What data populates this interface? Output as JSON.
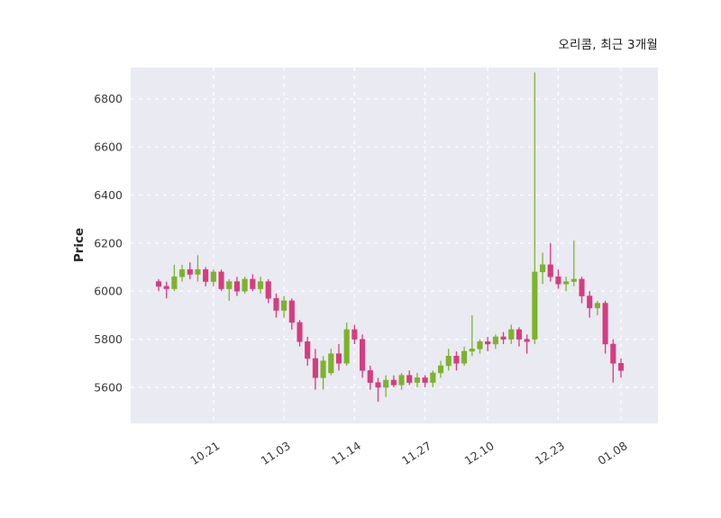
{
  "chart_data": {
    "type": "candlestick",
    "title": "오리콤, 최근 3개월",
    "ylabel": "Price",
    "ylim": [
      5450,
      6930
    ],
    "y_ticks": [
      5600,
      5800,
      6000,
      6200,
      6400,
      6600,
      6800
    ],
    "x_ticks": [
      {
        "index": 7,
        "label": "10.21"
      },
      {
        "index": 16,
        "label": "11.03"
      },
      {
        "index": 25,
        "label": "11.14"
      },
      {
        "index": 34,
        "label": "11.27"
      },
      {
        "index": 42,
        "label": "12.10"
      },
      {
        "index": 51,
        "label": "12.23"
      },
      {
        "index": 59,
        "label": "01.08"
      }
    ],
    "grid": "dashed",
    "legend": "none",
    "candle_format": [
      "open",
      "high",
      "low",
      "close"
    ],
    "candles": [
      [
        6040,
        6050,
        6000,
        6020
      ],
      [
        6020,
        6040,
        5970,
        6010
      ],
      [
        6010,
        6110,
        6000,
        6060
      ],
      [
        6060,
        6110,
        6040,
        6090
      ],
      [
        6090,
        6120,
        6050,
        6070
      ],
      [
        6070,
        6150,
        6040,
        6090
      ],
      [
        6090,
        6100,
        6020,
        6040
      ],
      [
        6040,
        6090,
        6020,
        6080
      ],
      [
        6080,
        6090,
        6000,
        6010
      ],
      [
        6010,
        6050,
        5960,
        6040
      ],
      [
        6040,
        6060,
        5980,
        6000
      ],
      [
        6000,
        6060,
        5990,
        6050
      ],
      [
        6050,
        6070,
        6000,
        6010
      ],
      [
        6010,
        6060,
        5990,
        6040
      ],
      [
        6040,
        6050,
        5950,
        5970
      ],
      [
        5970,
        5990,
        5890,
        5920
      ],
      [
        5920,
        5980,
        5890,
        5960
      ],
      [
        5960,
        5970,
        5840,
        5870
      ],
      [
        5870,
        5880,
        5770,
        5790
      ],
      [
        5790,
        5810,
        5690,
        5720
      ],
      [
        5720,
        5760,
        5590,
        5640
      ],
      [
        5640,
        5730,
        5590,
        5710
      ],
      [
        5660,
        5760,
        5650,
        5740
      ],
      [
        5740,
        5780,
        5670,
        5700
      ],
      [
        5700,
        5870,
        5690,
        5840
      ],
      [
        5840,
        5860,
        5780,
        5800
      ],
      [
        5800,
        5820,
        5640,
        5670
      ],
      [
        5670,
        5690,
        5590,
        5620
      ],
      [
        5620,
        5640,
        5540,
        5600
      ],
      [
        5600,
        5650,
        5560,
        5630
      ],
      [
        5630,
        5650,
        5600,
        5610
      ],
      [
        5610,
        5660,
        5590,
        5650
      ],
      [
        5650,
        5670,
        5610,
        5620
      ],
      [
        5620,
        5660,
        5600,
        5640
      ],
      [
        5640,
        5650,
        5600,
        5620
      ],
      [
        5620,
        5670,
        5600,
        5660
      ],
      [
        5660,
        5710,
        5640,
        5690
      ],
      [
        5690,
        5760,
        5670,
        5730
      ],
      [
        5730,
        5750,
        5670,
        5700
      ],
      [
        5700,
        5770,
        5690,
        5750
      ],
      [
        5750,
        5900,
        5730,
        5760
      ],
      [
        5760,
        5800,
        5740,
        5790
      ],
      [
        5790,
        5810,
        5750,
        5780
      ],
      [
        5780,
        5820,
        5760,
        5810
      ],
      [
        5810,
        5830,
        5780,
        5800
      ],
      [
        5800,
        5860,
        5780,
        5840
      ],
      [
        5840,
        5850,
        5770,
        5800
      ],
      [
        5800,
        5820,
        5740,
        5790
      ],
      [
        5800,
        6910,
        5780,
        6080
      ],
      [
        6080,
        6160,
        6030,
        6110
      ],
      [
        6110,
        6200,
        6040,
        6060
      ],
      [
        6060,
        6090,
        6010,
        6030
      ],
      [
        6030,
        6060,
        6000,
        6040
      ],
      [
        6040,
        6210,
        6020,
        6050
      ],
      [
        6050,
        6060,
        5950,
        5980
      ],
      [
        5980,
        6000,
        5890,
        5930
      ],
      [
        5930,
        5960,
        5900,
        5950
      ],
      [
        5950,
        5960,
        5740,
        5780
      ],
      [
        5780,
        5800,
        5620,
        5700
      ],
      [
        5700,
        5720,
        5640,
        5670
      ]
    ],
    "colors": {
      "up": "#7cb32b",
      "down": "#d63c80",
      "plot_bg": "#eaeaf2",
      "grid": "#ffffff",
      "tick_text": "#3a3a3a",
      "title_text": "#1a1a1a"
    }
  }
}
